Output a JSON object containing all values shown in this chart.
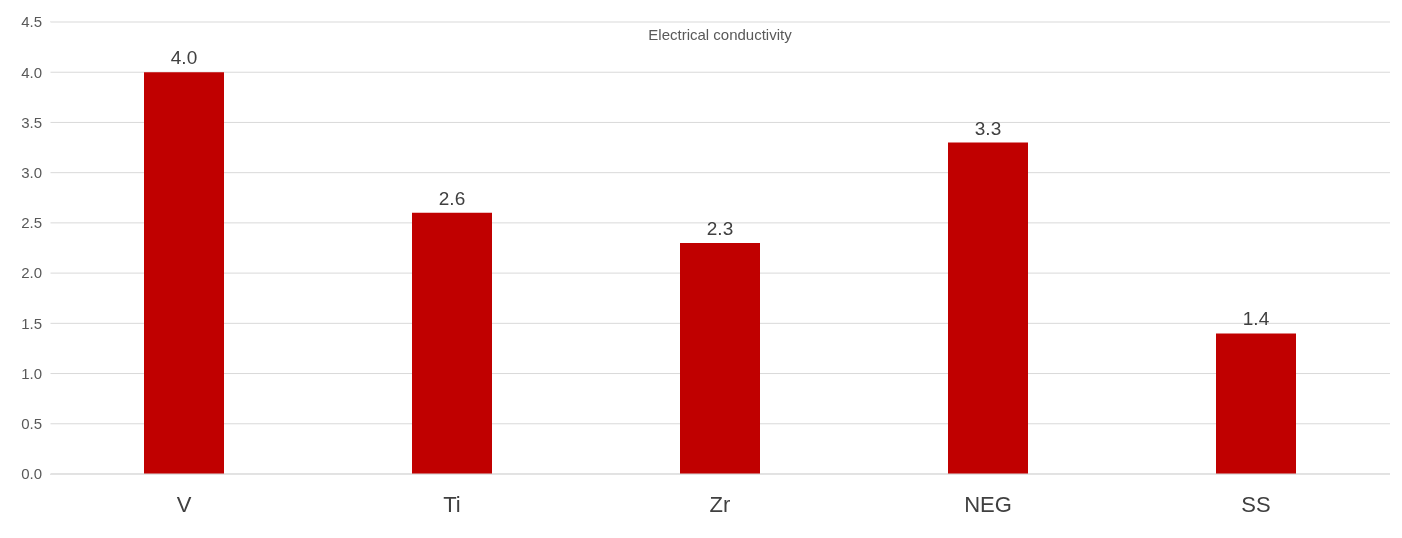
{
  "chart_data": {
    "type": "bar",
    "title": "Electrical conductivity",
    "categories": [
      "V",
      "Ti",
      "Zr",
      "NEG",
      "SS"
    ],
    "values": [
      4.0,
      2.6,
      2.3,
      3.3,
      1.4
    ],
    "value_labels": [
      "4.0",
      "2.6",
      "2.3",
      "3.3",
      "1.4"
    ],
    "color": "#c00000",
    "ylim": [
      0,
      4.5
    ],
    "yticks": [
      {
        "value": 0,
        "label": "0.0"
      },
      {
        "value": 0.5,
        "label": "0.5"
      },
      {
        "value": 1,
        "label": "1.0"
      },
      {
        "value": 1.5,
        "label": "1.5"
      },
      {
        "value": 2,
        "label": "2.0"
      },
      {
        "value": 2.5,
        "label": "2.5"
      },
      {
        "value": 3,
        "label": "3.0"
      },
      {
        "value": 3.5,
        "label": "3.5"
      },
      {
        "value": 4,
        "label": "4.0"
      },
      {
        "value": 4.5,
        "label": "4.5"
      }
    ],
    "grid": "y",
    "legend": false
  }
}
